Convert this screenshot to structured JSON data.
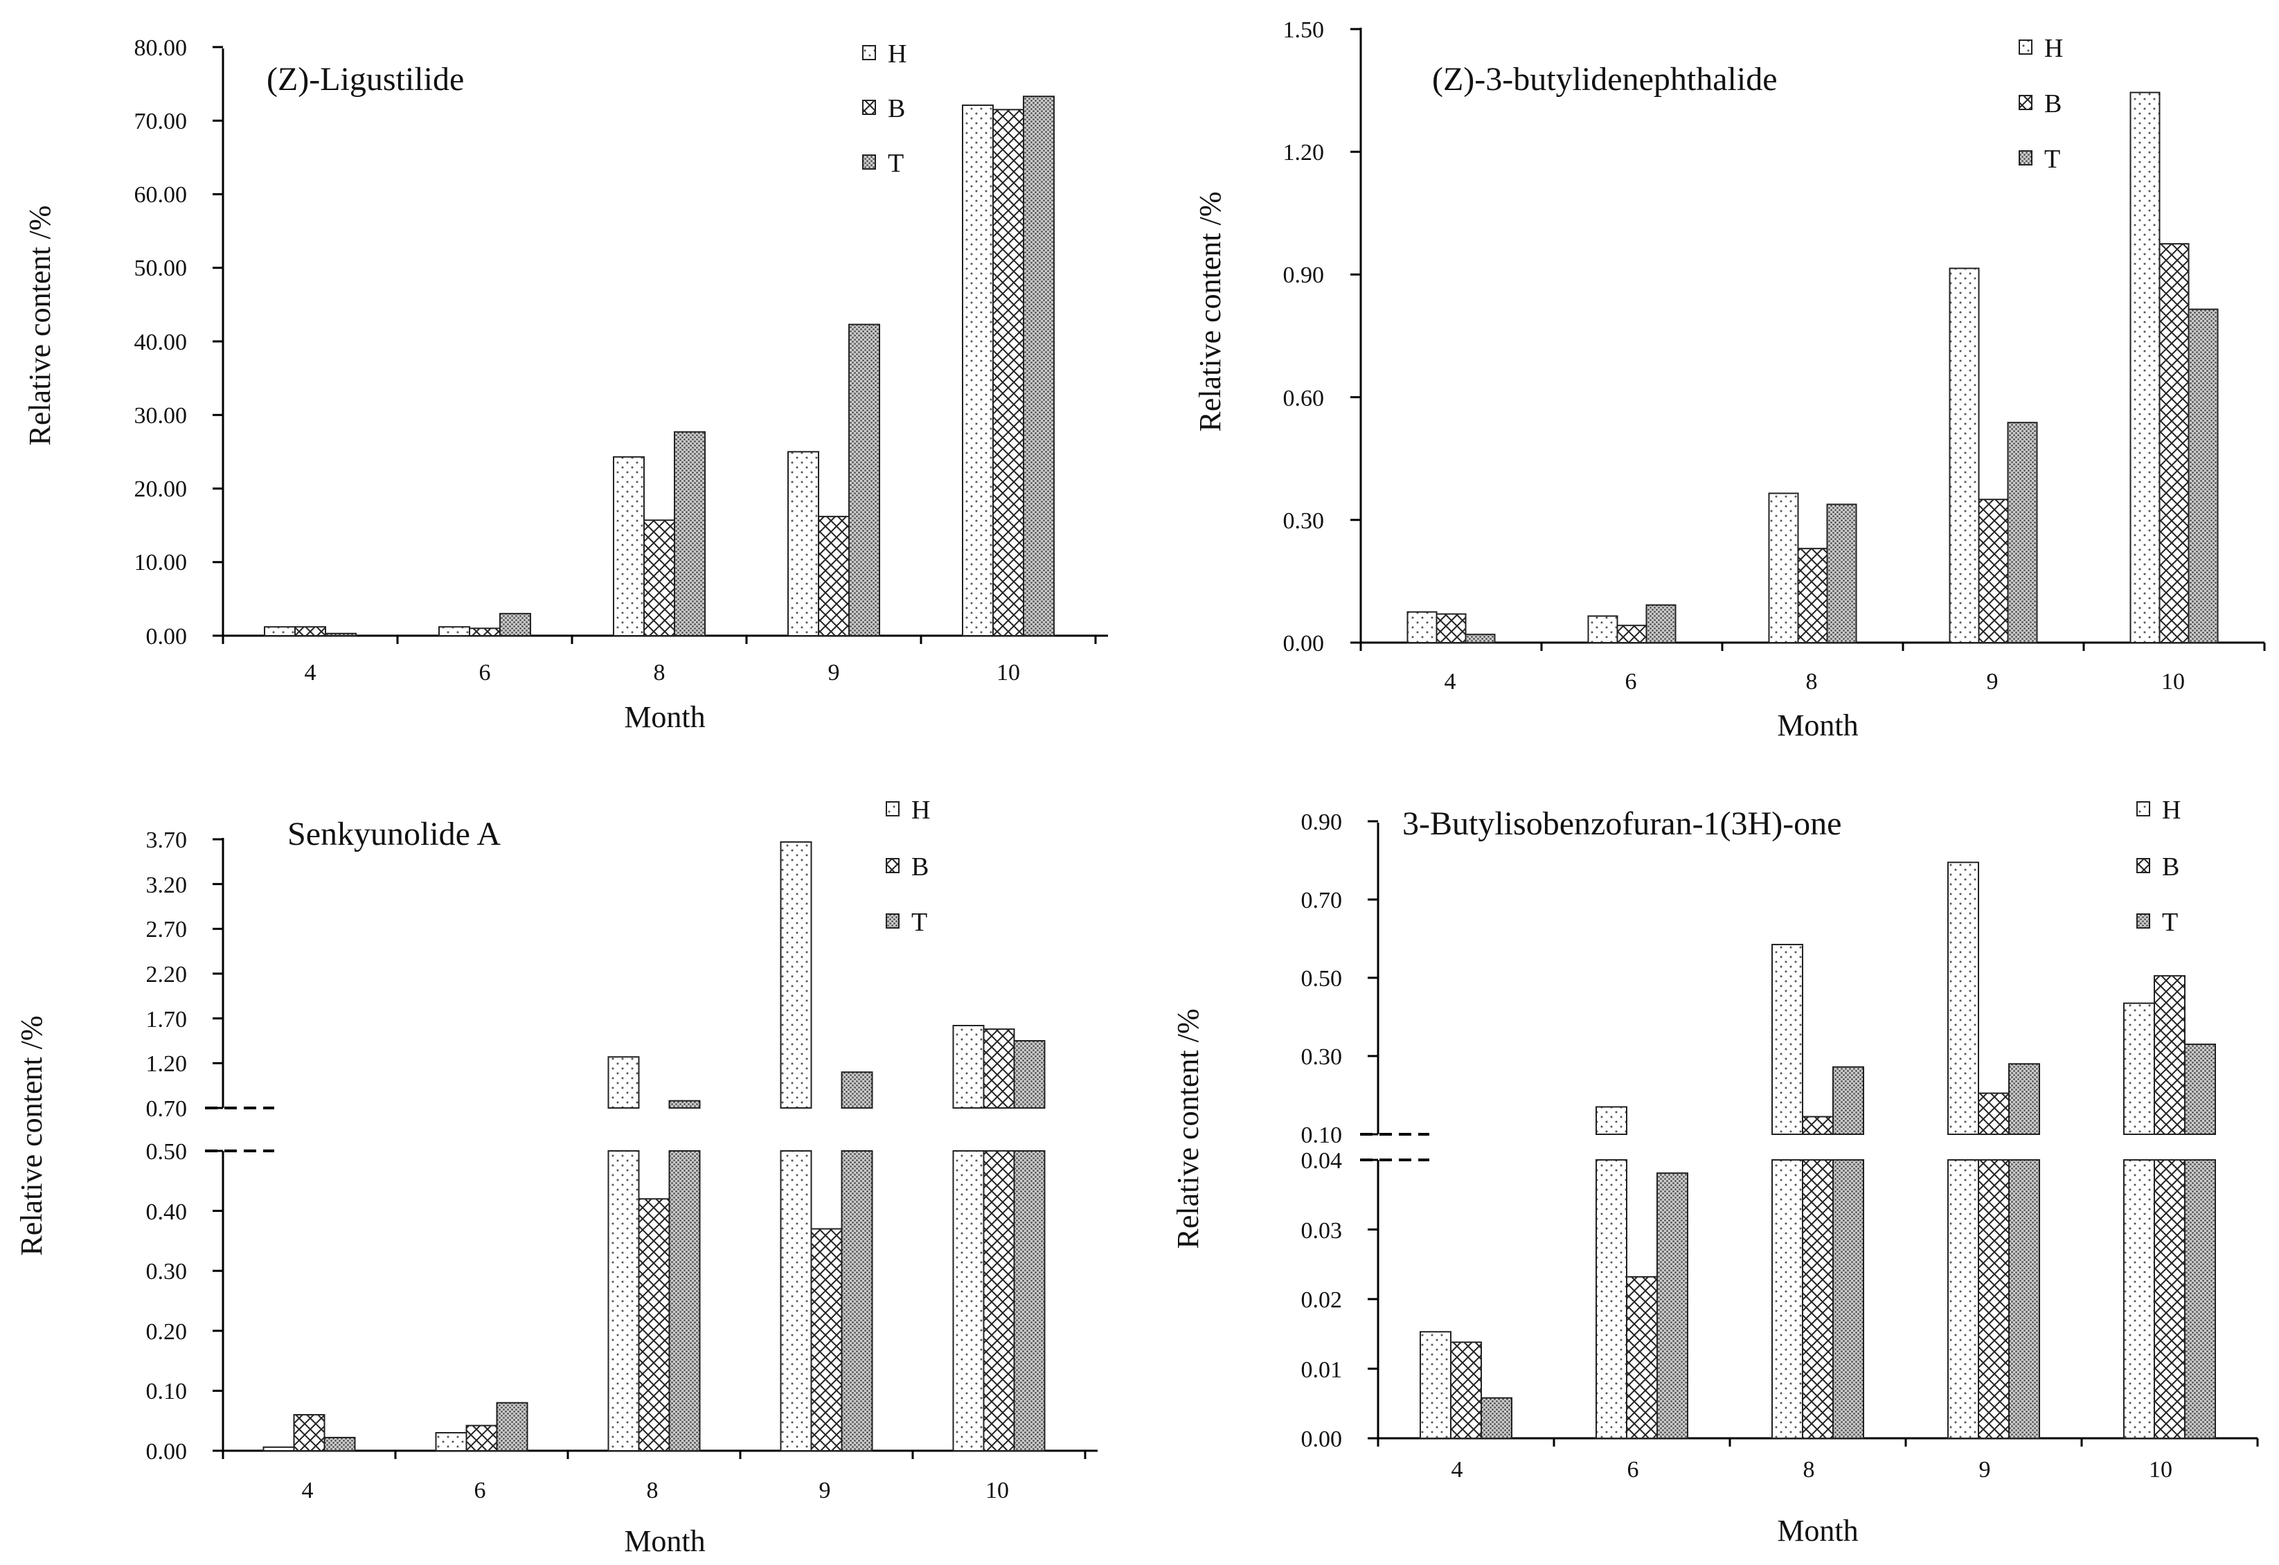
{
  "chart_data": [
    {
      "type": "bar",
      "title": "(Z)-Ligustilide",
      "xlabel": "Month",
      "ylabel": "Relative content /%",
      "categories": [
        "4",
        "6",
        "8",
        "9",
        "10"
      ],
      "ylim": [
        0,
        80
      ],
      "yticks": [
        "0.00",
        "10.00",
        "20.00",
        "30.00",
        "40.00",
        "50.00",
        "60.00",
        "70.00",
        "80.00"
      ],
      "series": [
        {
          "name": "H",
          "values": [
            1.2,
            1.2,
            24.3,
            25.0,
            72.1
          ]
        },
        {
          "name": "B",
          "values": [
            1.2,
            1.0,
            15.7,
            16.2,
            71.5
          ]
        },
        {
          "name": "T",
          "values": [
            0.3,
            3.0,
            27.7,
            42.3,
            73.3
          ]
        }
      ]
    },
    {
      "type": "bar",
      "title": "(Z)-3-butylidenephthalide",
      "xlabel": "Month",
      "ylabel": "Relative content /%",
      "categories": [
        "4",
        "6",
        "8",
        "9",
        "10"
      ],
      "ylim": [
        0,
        1.5
      ],
      "yticks": [
        "0.00",
        "0.30",
        "0.60",
        "0.90",
        "1.20",
        "1.50"
      ],
      "series": [
        {
          "name": "H",
          "values": [
            0.075,
            0.065,
            0.365,
            0.915,
            1.345
          ]
        },
        {
          "name": "B",
          "values": [
            0.07,
            0.042,
            0.23,
            0.35,
            0.975
          ]
        },
        {
          "name": "T",
          "values": [
            0.02,
            0.092,
            0.338,
            0.538,
            0.815
          ]
        }
      ]
    },
    {
      "type": "bar",
      "title": "Senkyunolide A",
      "xlabel": "Month",
      "ylabel": "Relative content /%",
      "categories": [
        "4",
        "6",
        "8",
        "9",
        "10"
      ],
      "axis_break": [
        0.5,
        0.7
      ],
      "ylim_lower": [
        0,
        0.5
      ],
      "ylim_upper": [
        0.7,
        3.7
      ],
      "yticks_lower": [
        "0.00",
        "0.10",
        "0.20",
        "0.30",
        "0.40",
        "0.50"
      ],
      "yticks_upper": [
        "0.70",
        "1.20",
        "1.70",
        "2.20",
        "2.70",
        "3.20",
        "3.70"
      ],
      "series": [
        {
          "name": "H",
          "values": [
            0.006,
            0.03,
            1.27,
            3.67,
            1.62
          ]
        },
        {
          "name": "B",
          "values": [
            0.06,
            0.042,
            0.42,
            0.37,
            1.58
          ]
        },
        {
          "name": "T",
          "values": [
            0.022,
            0.08,
            0.78,
            1.1,
            1.45
          ]
        }
      ]
    },
    {
      "type": "bar",
      "title": "3-Butylisobenzofuran-1(3H)-one",
      "xlabel": "Month",
      "ylabel": "Relative content /%",
      "categories": [
        "4",
        "6",
        "8",
        "9",
        "10"
      ],
      "axis_break": [
        0.04,
        0.1
      ],
      "ylim_lower": [
        0,
        0.04
      ],
      "ylim_upper": [
        0.1,
        0.9
      ],
      "yticks_lower": [
        "0.00",
        "0.01",
        "0.02",
        "0.03",
        "0.04"
      ],
      "yticks_upper": [
        "0.10",
        "0.30",
        "0.50",
        "0.70",
        "0.90"
      ],
      "series": [
        {
          "name": "H",
          "values": [
            0.0153,
            0.17,
            0.585,
            0.795,
            0.435
          ]
        },
        {
          "name": "B",
          "values": [
            0.0138,
            0.0232,
            0.145,
            0.205,
            0.505
          ]
        },
        {
          "name": "T",
          "values": [
            0.0058,
            0.0381,
            0.272,
            0.28,
            0.33
          ]
        }
      ]
    }
  ]
}
